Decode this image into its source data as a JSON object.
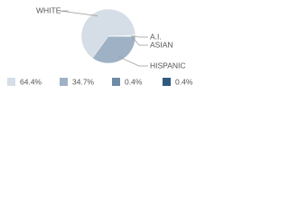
{
  "chart_data": {
    "type": "pie",
    "categories": [
      "WHITE",
      "HISPANIC",
      "A.I.",
      "ASIAN"
    ],
    "values": [
      64.4,
      34.7,
      0.4,
      0.4
    ],
    "value_labels": [
      "64.4%",
      "34.7%",
      "0.4%",
      "0.4%"
    ],
    "colors": [
      "#d5dde6",
      "#9fb1c5",
      "#6d8ba7",
      "#2f5a80"
    ]
  }
}
